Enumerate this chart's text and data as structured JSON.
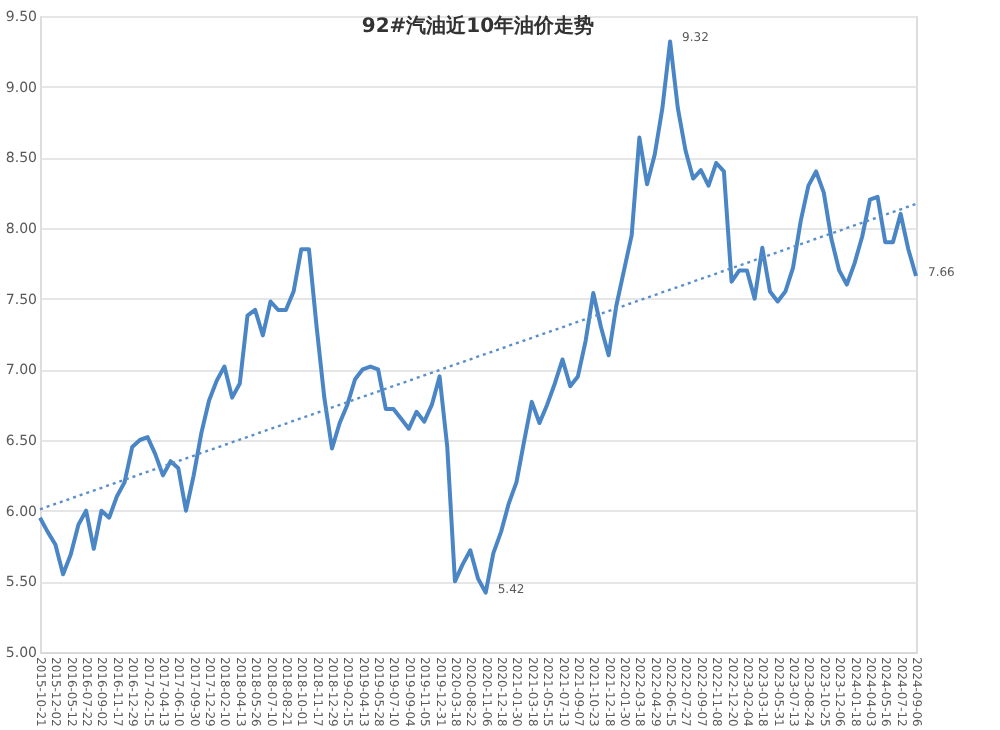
{
  "chart_data": {
    "type": "line",
    "title": "92#汽油近10年油价走势",
    "categories": [
      "2015-10-21",
      null,
      "2015-12-02",
      null,
      "2016-05-12",
      null,
      "2016-07-22",
      null,
      "2016-09-02",
      null,
      "2016-11-17",
      null,
      "2016-12-29",
      null,
      "2017-02-15",
      null,
      "2017-04-13",
      null,
      "2017-06-10",
      null,
      "2017-09-30",
      null,
      "2017-12-29",
      null,
      "2018-02-10",
      null,
      "2018-04-13",
      null,
      "2018-05-26",
      null,
      "2018-07-10",
      null,
      "2018-08-21",
      null,
      "2018-10-01",
      null,
      "2018-11-17",
      null,
      "2018-12-29",
      null,
      "2019-02-15",
      null,
      "2019-04-13",
      null,
      "2019-05-28",
      null,
      "2019-07-10",
      null,
      "2019-09-04",
      null,
      "2019-11-05",
      null,
      "2019-12-31",
      null,
      "2020-03-18",
      null,
      "2020-08-22",
      null,
      "2020-11-06",
      null,
      "2020-12-18",
      null,
      "2021-01-30",
      null,
      "2021-03-18",
      null,
      "2021-05-15",
      null,
      "2021-07-13",
      null,
      "2021-09-07",
      null,
      "2021-10-23",
      null,
      "2021-12-18",
      null,
      "2022-01-30",
      null,
      "2022-03-18",
      null,
      "2022-04-29",
      null,
      "2022-06-15",
      null,
      "2022-07-27",
      null,
      "2022-09-07",
      null,
      "2022-11-08",
      null,
      "2022-12-20",
      null,
      "2023-02-04",
      null,
      "2023-03-18",
      null,
      "2023-05-31",
      null,
      "2023-07-13",
      null,
      "2023-08-24",
      null,
      "2023-10-25",
      null,
      "2023-12-06",
      null,
      "2024-01-18",
      null,
      "2024-04-03",
      null,
      "2024-05-16",
      null,
      "2024-07-12",
      null,
      "2024-09-06"
    ],
    "series": [
      {
        "color": "#4a86c5",
        "line_style": "solid",
        "values": [
          5.95,
          5.85,
          5.76,
          5.55,
          5.69,
          5.9,
          6.0,
          5.73,
          6.0,
          5.95,
          6.1,
          6.2,
          6.45,
          6.5,
          6.52,
          6.4,
          6.25,
          6.35,
          6.3,
          6.0,
          6.25,
          6.55,
          6.78,
          6.92,
          7.02,
          6.8,
          6.9,
          7.38,
          7.42,
          7.24,
          7.48,
          7.42,
          7.42,
          7.55,
          7.85,
          7.85,
          7.3,
          6.8,
          6.44,
          6.62,
          6.75,
          6.93,
          7.0,
          7.02,
          7.0,
          6.72,
          6.72,
          6.65,
          6.58,
          6.7,
          6.63,
          6.75,
          6.95,
          6.45,
          5.5,
          5.62,
          5.72,
          5.52,
          5.42,
          5.7,
          5.85,
          6.05,
          6.2,
          6.49,
          6.77,
          6.62,
          6.75,
          6.9,
          7.07,
          6.88,
          6.95,
          7.2,
          7.54,
          7.3,
          7.1,
          7.45,
          7.7,
          7.95,
          8.64,
          8.31,
          8.52,
          8.85,
          9.32,
          8.85,
          8.55,
          8.35,
          8.41,
          8.3,
          8.46,
          8.4,
          7.62,
          7.7,
          7.7,
          7.5,
          7.86,
          7.55,
          7.48,
          7.55,
          7.72,
          8.05,
          8.3,
          8.4,
          8.25,
          7.92,
          7.7,
          7.6,
          7.75,
          7.94,
          8.2,
          8.22,
          7.9,
          7.9,
          8.1,
          7.85,
          7.66
        ],
        "value_labels": [
          null,
          null,
          null,
          null,
          null,
          null,
          null,
          null,
          null,
          null,
          null,
          null,
          null,
          null,
          null,
          null,
          null,
          null,
          null,
          null,
          null,
          null,
          null,
          null,
          null,
          null,
          null,
          null,
          null,
          null,
          null,
          null,
          null,
          null,
          null,
          null,
          null,
          null,
          null,
          null,
          null,
          null,
          null,
          null,
          null,
          null,
          null,
          null,
          null,
          null,
          null,
          null,
          null,
          null,
          null,
          null,
          null,
          null,
          "5.42",
          null,
          null,
          null,
          null,
          null,
          null,
          null,
          null,
          null,
          null,
          null,
          null,
          null,
          null,
          null,
          null,
          null,
          null,
          null,
          null,
          null,
          null,
          null,
          "9.32",
          null,
          null,
          null,
          null,
          null,
          null,
          null,
          null,
          null,
          null,
          null,
          null,
          null,
          null,
          null,
          null,
          null,
          null,
          null,
          null,
          null,
          null,
          null,
          null,
          null,
          null,
          null,
          null,
          null,
          null,
          null,
          "7.66"
        ]
      },
      {
        "type": "line",
        "color": "#5b8fc9",
        "line_style": "dotted",
        "values": [
          6.01,
          null,
          null,
          null,
          null,
          null,
          null,
          null,
          null,
          null,
          null,
          null,
          null,
          null,
          null,
          null,
          null,
          null,
          null,
          null,
          null,
          null,
          null,
          null,
          null,
          null,
          null,
          null,
          null,
          null,
          null,
          null,
          null,
          null,
          null,
          null,
          null,
          null,
          null,
          null,
          null,
          null,
          null,
          null,
          null,
          null,
          null,
          null,
          null,
          null,
          null,
          null,
          null,
          null,
          null,
          null,
          null,
          null,
          null,
          null,
          null,
          null,
          null,
          null,
          null,
          null,
          null,
          null,
          null,
          null,
          null,
          null,
          null,
          null,
          null,
          null,
          null,
          null,
          null,
          null,
          null,
          null,
          null,
          null,
          null,
          null,
          null,
          null,
          null,
          null,
          null,
          null,
          null,
          null,
          null,
          null,
          null,
          null,
          null,
          null,
          null,
          null,
          null,
          null,
          null,
          null,
          null,
          null,
          null,
          null,
          null,
          null,
          null,
          null,
          8.17
        ]
      }
    ],
    "ylim": [
      5,
      9.5
    ],
    "yticks": [
      {
        "value": 5,
        "label": "5.00"
      },
      {
        "value": 5.5,
        "label": "5.50"
      },
      {
        "value": 6,
        "label": "6.00"
      },
      {
        "value": 6.5,
        "label": "6.50"
      },
      {
        "value": 7,
        "label": "7.00"
      },
      {
        "value": 7.5,
        "label": "7.50"
      },
      {
        "value": 8,
        "label": "8.00"
      },
      {
        "value": 8.5,
        "label": "8.50"
      },
      {
        "value": 9,
        "label": "9.00"
      },
      {
        "value": 9.5,
        "label": "9.50"
      }
    ],
    "grid": "y"
  }
}
